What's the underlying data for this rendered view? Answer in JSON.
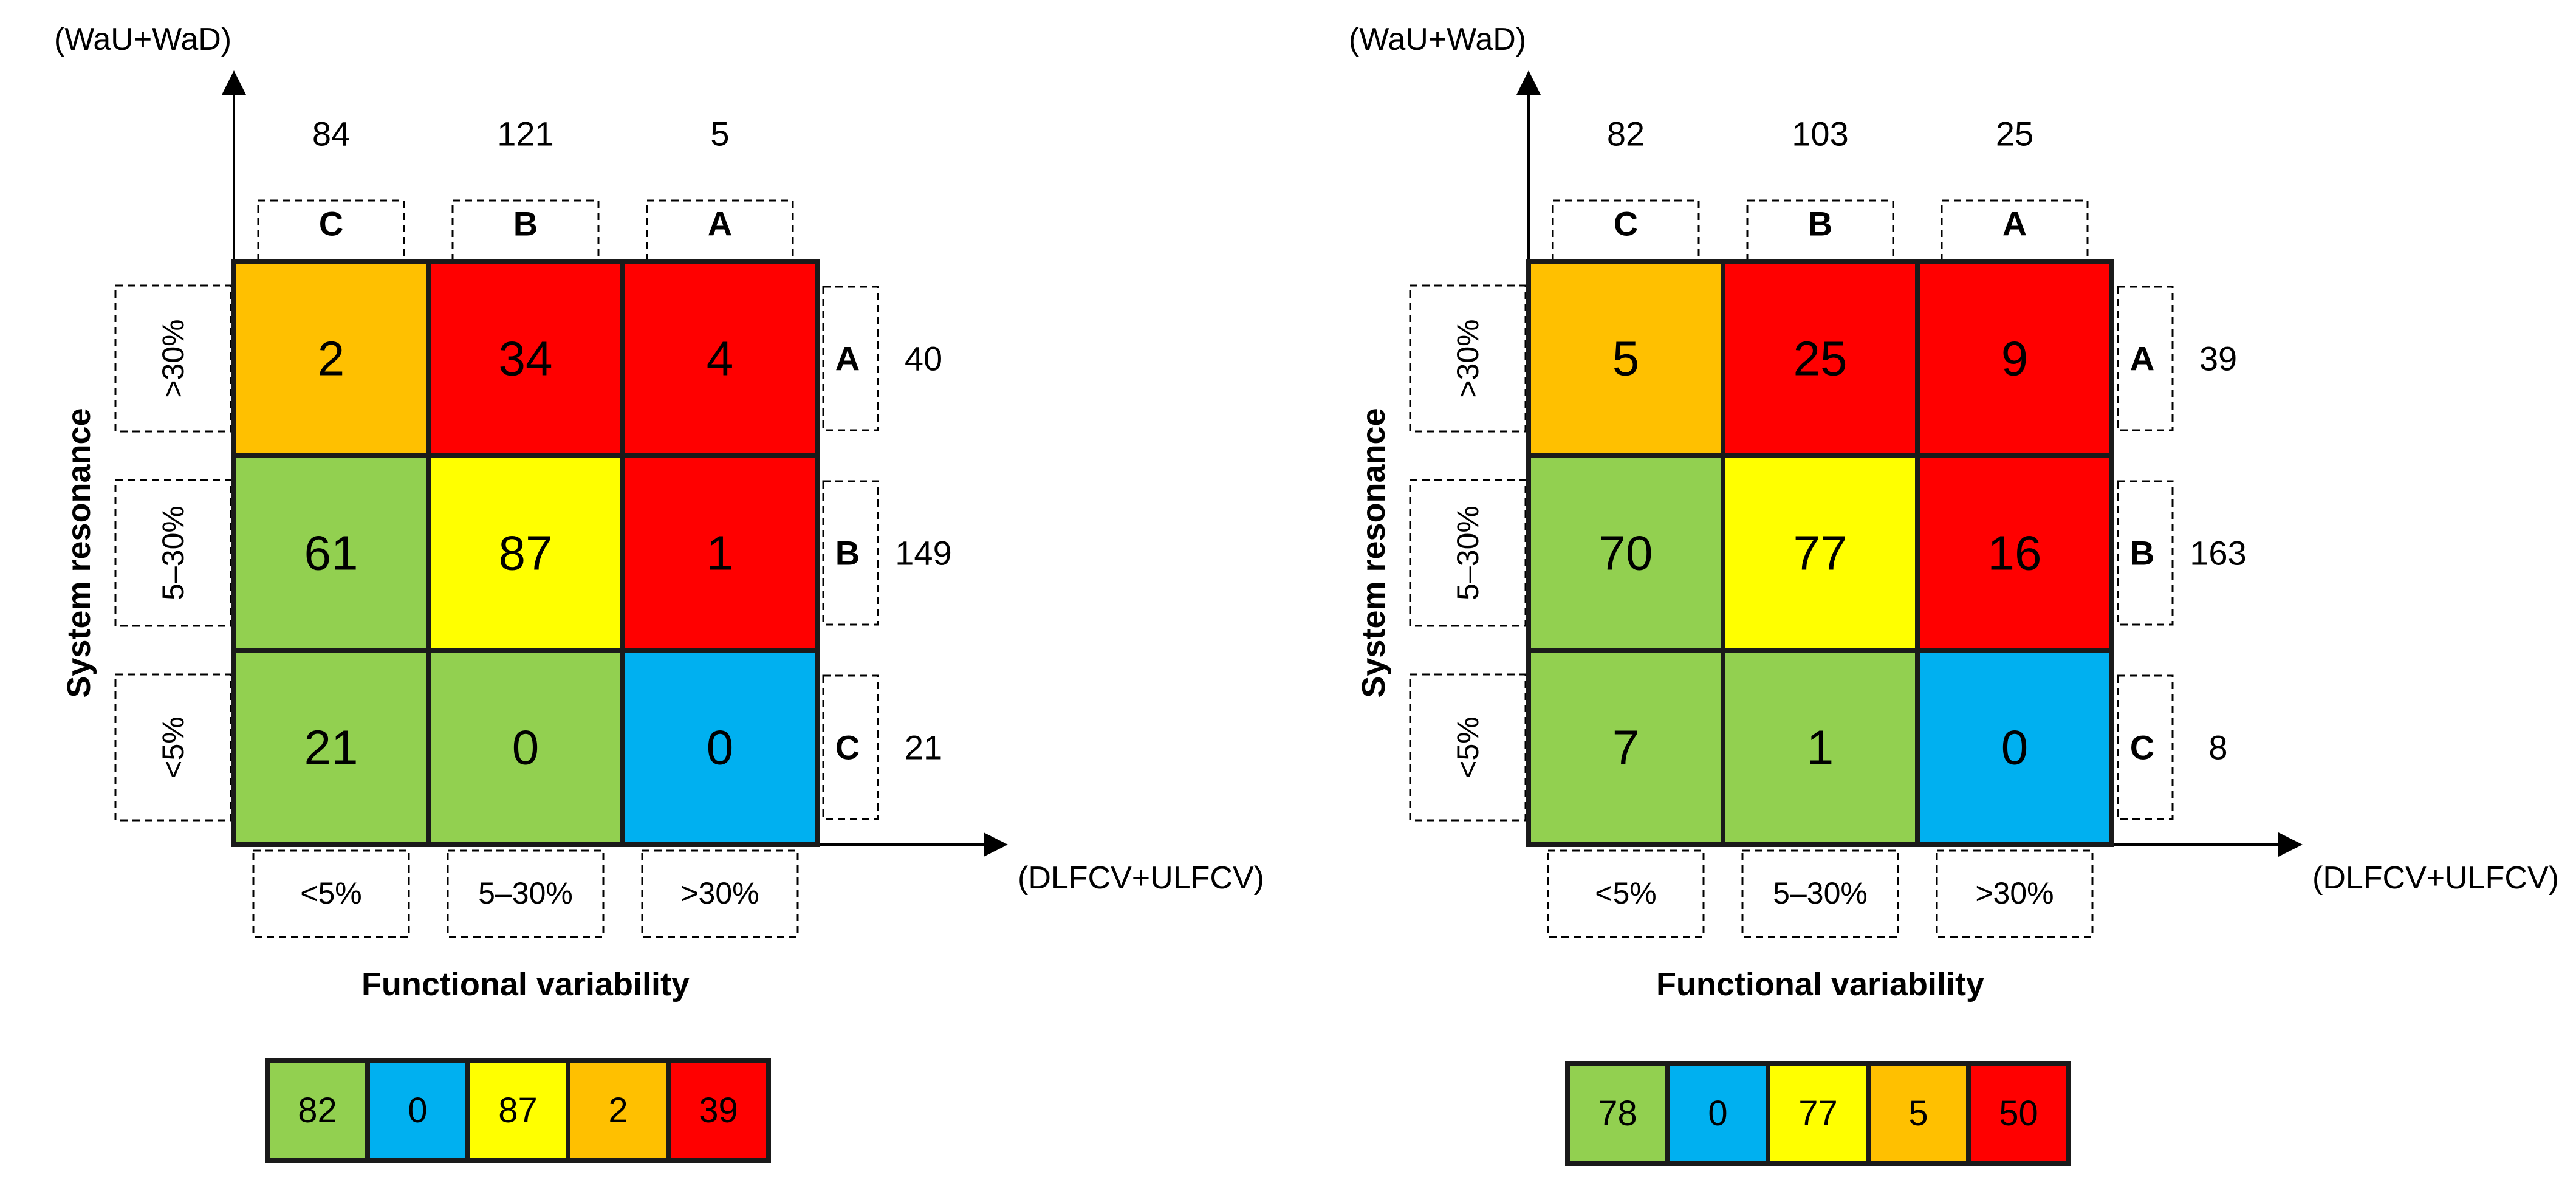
{
  "chart_data": [
    {
      "type": "heatmap",
      "y_axis_label": "(WaU+WaD)",
      "x_axis_label": "(DLFCV+ULFCV)",
      "y_title": "System resonance",
      "x_title": "Functional variability",
      "col_classes": [
        "C",
        "B",
        "A"
      ],
      "col_totals": [
        "84",
        "121",
        "5"
      ],
      "col_ranges": [
        "<5%",
        "5–30%",
        ">30%"
      ],
      "row_classes": [
        "A",
        "B",
        "C"
      ],
      "row_totals": [
        "40",
        "149",
        "21"
      ],
      "row_ranges": [
        ">30%",
        "5–30%",
        "<5%"
      ],
      "cells": [
        [
          "2",
          "34",
          "4"
        ],
        [
          "61",
          "87",
          "1"
        ],
        [
          "21",
          "0",
          "0"
        ]
      ],
      "cell_categories": [
        [
          "orange",
          "red",
          "red"
        ],
        [
          "green",
          "yellow",
          "red"
        ],
        [
          "green",
          "green",
          "blue"
        ]
      ],
      "summary": [
        {
          "category": "green",
          "value": "82"
        },
        {
          "category": "blue",
          "value": "0"
        },
        {
          "category": "yellow",
          "value": "87"
        },
        {
          "category": "orange",
          "value": "2"
        },
        {
          "category": "red",
          "value": "39"
        }
      ]
    },
    {
      "type": "heatmap",
      "y_axis_label": "(WaU+WaD)",
      "x_axis_label": "(DLFCV+ULFCV)",
      "y_title": "System resonance",
      "x_title": "Functional variability",
      "col_classes": [
        "C",
        "B",
        "A"
      ],
      "col_totals": [
        "82",
        "103",
        "25"
      ],
      "col_ranges": [
        "<5%",
        "5–30%",
        ">30%"
      ],
      "row_classes": [
        "A",
        "B",
        "C"
      ],
      "row_totals": [
        "39",
        "163",
        "8"
      ],
      "row_ranges": [
        ">30%",
        "5–30%",
        "<5%"
      ],
      "cells": [
        [
          "5",
          "25",
          "9"
        ],
        [
          "70",
          "77",
          "16"
        ],
        [
          "7",
          "1",
          "0"
        ]
      ],
      "cell_categories": [
        [
          "orange",
          "red",
          "red"
        ],
        [
          "green",
          "yellow",
          "red"
        ],
        [
          "green",
          "green",
          "blue"
        ]
      ],
      "summary": [
        {
          "category": "green",
          "value": "78"
        },
        {
          "category": "blue",
          "value": "0"
        },
        {
          "category": "yellow",
          "value": "77"
        },
        {
          "category": "orange",
          "value": "5"
        },
        {
          "category": "red",
          "value": "50"
        }
      ]
    }
  ],
  "colors": {
    "green": "#92D050",
    "blue": "#00B0F0",
    "yellow": "#FFFF00",
    "orange": "#FFC000",
    "red": "#FF0000"
  }
}
